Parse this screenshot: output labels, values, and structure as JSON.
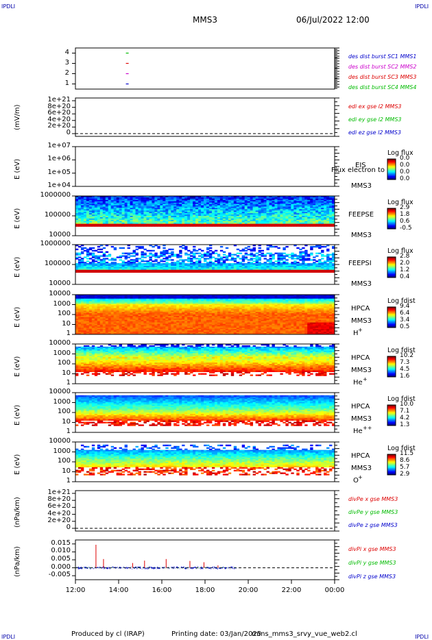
{
  "header": {
    "corner_tl": "IPDLI",
    "corner_tr": "IPDLI",
    "corner_bl": "IPDLI",
    "corner_br": "IPDLI",
    "mission": "MMS3",
    "datetime": "06/Jul/2022 12:00"
  },
  "footer": {
    "producer": "Produced by cl (IRAP)",
    "printing": "Printing date: 03/Jan/2025",
    "script": "mms_mms3_srvy_vue_web2.cl"
  },
  "chart_data": {
    "type": "stacked_timeseries",
    "x_ticks": [
      "12:00",
      "14:00",
      "16:00",
      "18:00",
      "20:00",
      "22:00",
      "00:00"
    ],
    "x_range_hours": [
      12,
      24
    ],
    "panels": [
      {
        "id": "burst",
        "type": "scatter",
        "ylabel": "",
        "yticks": [
          "1",
          "2",
          "3",
          "4"
        ],
        "ylim": [
          0.5,
          4.5
        ],
        "series": [
          {
            "name": "des dist burst SC1 MMS1",
            "color": "#0000cc",
            "points": [
              [
                14.4,
                1
              ]
            ]
          },
          {
            "name": "des dist burst SC2 MMS2",
            "color": "#cc00cc",
            "points": [
              [
                14.4,
                2
              ]
            ]
          },
          {
            "name": "des dist burst SC3 MMS3",
            "color": "#dd0000",
            "points": [
              [
                14.4,
                3
              ]
            ]
          },
          {
            "name": "des dist burst SC4 MMS4",
            "color": "#00bb00",
            "points": [
              [
                14.4,
                4
              ]
            ]
          }
        ]
      },
      {
        "id": "edi",
        "type": "line",
        "ylabel": "(mV/m)",
        "yticks": [
          "0",
          "2e+20",
          "4e+20",
          "6e+20",
          "8e+20",
          "1e+21"
        ],
        "ylim": [
          0,
          1e+21
        ],
        "zero_line": true,
        "series": [
          {
            "name": "edi ex gse l2 MMS3",
            "color": "#dd0000"
          },
          {
            "name": "edi ey gse l2 MMS3",
            "color": "#00bb00"
          },
          {
            "name": "edi ez gse l2 MMS3",
            "color": "#0000cc"
          }
        ]
      },
      {
        "id": "eis",
        "type": "heatmap",
        "ylabel": "E (eV)",
        "yticks": [
          "1e+04",
          "1e+05",
          "1e+06",
          "1e+07"
        ],
        "side_labels": [
          "EIS",
          "MMS3"
        ],
        "overlay_text": "Flux electron to",
        "colorbar": {
          "title": "Log flux",
          "values": [
            "0.0",
            "0.0",
            "0.0",
            "0.0"
          ]
        }
      },
      {
        "id": "feepse",
        "type": "heatmap",
        "ylabel": "E (eV)",
        "yticks": [
          "10000",
          "100000",
          "1000000"
        ],
        "side_labels": [
          "FEEPSE",
          "MMS3"
        ],
        "colorbar": {
          "title": "Log flux",
          "values": [
            "2.9",
            "1.8",
            "0.6",
            "-0.5"
          ]
        }
      },
      {
        "id": "feepsi",
        "type": "heatmap",
        "ylabel": "E (eV)",
        "yticks": [
          "10000",
          "100000",
          "1000000"
        ],
        "side_labels": [
          "FEEPSI",
          "MMS3"
        ],
        "colorbar": {
          "title": "Log flux",
          "values": [
            "2.8",
            "2.0",
            "1.2",
            "0.4"
          ]
        }
      },
      {
        "id": "hpca_h",
        "type": "heatmap",
        "ylabel": "E (eV)",
        "yticks": [
          "1",
          "10",
          "100",
          "1000",
          "10000"
        ],
        "side_labels": [
          "HPCA",
          "MMS3"
        ],
        "species": "H",
        "charge": "+",
        "colorbar": {
          "title": "Log fdist",
          "values": [
            "9.4",
            "6.4",
            "3.4",
            "0.5"
          ]
        }
      },
      {
        "id": "hpca_he",
        "type": "heatmap",
        "ylabel": "E (eV)",
        "yticks": [
          "1",
          "10",
          "100",
          "1000",
          "10000"
        ],
        "side_labels": [
          "HPCA",
          "MMS3"
        ],
        "species": "He",
        "charge": "+",
        "colorbar": {
          "title": "Log fdist",
          "values": [
            "10.2",
            "7.3",
            "4.5",
            "1.6"
          ]
        }
      },
      {
        "id": "hpca_he2",
        "type": "heatmap",
        "ylabel": "E (eV)",
        "yticks": [
          "1",
          "10",
          "100",
          "1000",
          "10000"
        ],
        "side_labels": [
          "HPCA",
          "MMS3"
        ],
        "species": "He",
        "charge": "++",
        "colorbar": {
          "title": "Log fdist",
          "values": [
            "10.0",
            "7.1",
            "4.2",
            "1.3"
          ]
        }
      },
      {
        "id": "hpca_o",
        "type": "heatmap",
        "ylabel": "E (eV)",
        "yticks": [
          "1",
          "10",
          "100",
          "1000",
          "10000"
        ],
        "side_labels": [
          "HPCA",
          "MMS3"
        ],
        "species": "O",
        "charge": "+",
        "colorbar": {
          "title": "Log fdist",
          "values": [
            "11.5",
            "8.6",
            "5.7",
            "2.9"
          ]
        }
      },
      {
        "id": "divpe",
        "type": "line",
        "ylabel": "(nPa/km)",
        "yticks": [
          "0",
          "2e+20",
          "4e+20",
          "6e+20",
          "8e+20",
          "1e+21"
        ],
        "ylim": [
          0,
          1e+21
        ],
        "zero_line": true,
        "series": [
          {
            "name": "divPe x gse MMS3",
            "color": "#dd0000"
          },
          {
            "name": "divPe y gse MMS3",
            "color": "#00bb00"
          },
          {
            "name": "divPe z gse MMS3",
            "color": "#0000cc"
          }
        ]
      },
      {
        "id": "divpi",
        "type": "line",
        "ylabel": "(nPa/km)",
        "yticks": [
          "-0.005",
          "0.000",
          "0.005",
          "0.010",
          "0.015"
        ],
        "ylim": [
          -0.0075,
          0.0175
        ],
        "zero_line": true,
        "data_end_hour": 19.45,
        "series": [
          {
            "name": "divPi x gse MMS3",
            "color": "#dd0000",
            "spikes": [
              [
                12.95,
                0.0145
              ],
              [
                13.3,
                0.0055
              ],
              [
                14.65,
                0.003
              ],
              [
                15.2,
                0.0045
              ],
              [
                16.2,
                0.0055
              ],
              [
                17.3,
                0.0043
              ],
              [
                17.95,
                0.0035
              ],
              [
                18.6,
                0.0015
              ]
            ]
          },
          {
            "name": "divPi y gse MMS3",
            "color": "#00bb00"
          },
          {
            "name": "divPi z gse MMS3",
            "color": "#0000cc"
          }
        ]
      }
    ]
  }
}
